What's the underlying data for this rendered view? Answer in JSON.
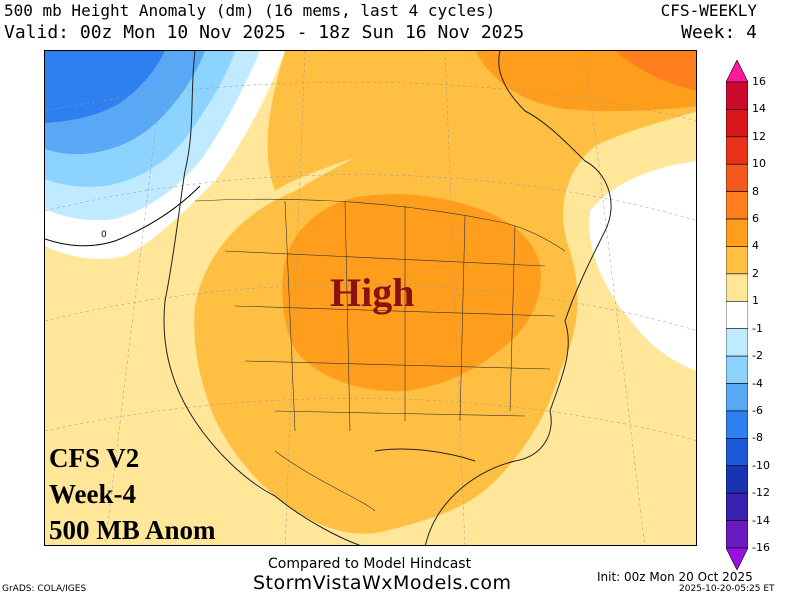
{
  "header": {
    "title": "500 mb Height Anomaly (dm) (16 mems, last 4 cycles)",
    "valid": "Valid: 00z Mon 10 Nov 2025 - 18z Sun 16 Nov 2025",
    "model": "CFS-WEEKLY",
    "week": "Week: 4"
  },
  "map": {
    "high_label": "High",
    "contour_label": "0",
    "overlay_lines": [
      "CFS V2",
      "Week-4",
      "500 MB Anom"
    ]
  },
  "colorbar": {
    "labels": [
      "16",
      "14",
      "12",
      "10",
      "8",
      "6",
      "4",
      "2",
      "1",
      "-1",
      "-2",
      "-4",
      "-6",
      "-8",
      "-10",
      "-12",
      "-14",
      "-16"
    ],
    "colors": [
      "#ff1a9a",
      "#cc0a2e",
      "#d9161a",
      "#e8321a",
      "#f5581c",
      "#ff7f1e",
      "#ff9e1c",
      "#ffbf43",
      "#ffe699",
      "#ffffff",
      "#bfeaff",
      "#8cd3ff",
      "#59a8f5",
      "#2e7ff0",
      "#1b59d9",
      "#1a33b3",
      "#3a22b0",
      "#6a1ac0",
      "#9a10e0"
    ]
  },
  "footer": {
    "compared": "Compared to Model Hindcast",
    "site": "StormVistaWxModels.com",
    "grads": "GrADS: COLA/IGES",
    "init": "Init: 00z Mon 20 Oct 2025",
    "stamp": "2025-10-20-05:25 ET"
  }
}
